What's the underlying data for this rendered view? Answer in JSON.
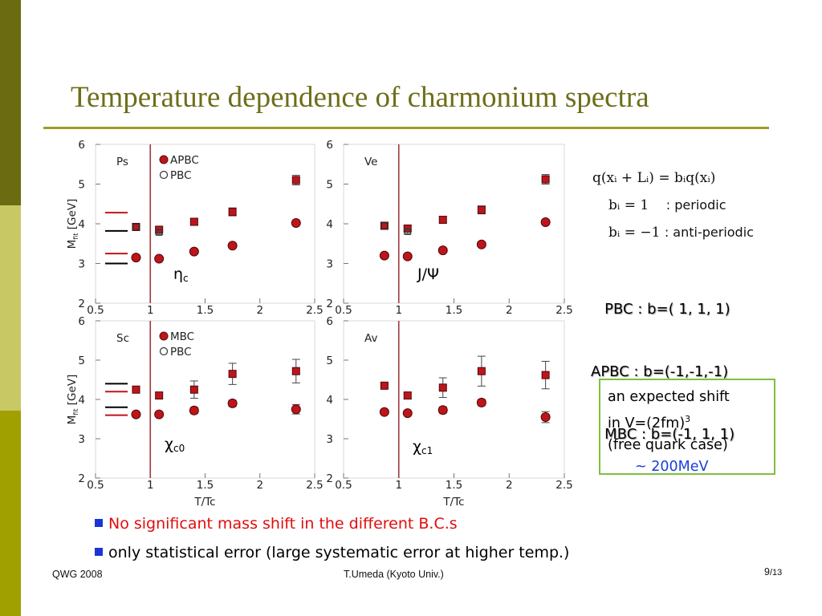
{
  "slide": {
    "title": "Temperature dependence of charmonium spectra",
    "formula": {
      "line1": "q(xᵢ + Lᵢ) = bᵢq(xᵢ)",
      "line2": "bᵢ = 1",
      "line2_desc": ": periodic",
      "line3": "bᵢ = −1",
      "line3_desc": ": anti-periodic"
    },
    "bc_lines": [
      "   PBC : b=( 1, 1, 1)",
      "APBC : b=(-1,-1,-1)",
      "   MBC : b=(-1, 1, 1)"
    ],
    "shift_box": {
      "line1": "an expected shift",
      "line2": "in V=(2fm)",
      "line2_sup": "3",
      "line3": "(free quark case)",
      "line4": "~ 200MeV"
    },
    "bullets": [
      "No significant mass shift in the different B.C.s",
      "only statistical error (large systematic error at higher temp.)"
    ],
    "footer": {
      "left": "QWG 2008",
      "center": "T.Umeda (Kyoto Univ.)",
      "page": "9",
      "total": "/13"
    },
    "colors": {
      "accent_olive": "#9c9c2a",
      "title": "#6e6e1a",
      "data_red": "#c0141a",
      "bullet_red": "#e00d0d",
      "bullet_square": "#1a35d4",
      "box_border": "#7fbf3f",
      "box_text_blue": "#1c3fd6"
    }
  },
  "chart_data": [
    {
      "type": "scatter",
      "panel": "Ps",
      "label": "η",
      "label_sub": "c",
      "xlabel": "",
      "ylabel": "M",
      "ylabel_sub": "fit",
      "ylabel_unit": " [GeV]",
      "xlim": [
        0.5,
        2.5
      ],
      "ylim": [
        2,
        6
      ],
      "xticks": [
        "0.5",
        "1",
        "1.5",
        "2",
        "2.5"
      ],
      "yticks": [
        "2",
        "3",
        "4",
        "5",
        "6"
      ],
      "vline": 1.0,
      "legend": [
        "APBC",
        "PBC"
      ],
      "grid": false,
      "series": [
        {
          "name": "APBC",
          "marker": "square",
          "x": [
            0.87,
            1.08,
            1.4,
            1.75,
            2.33
          ],
          "y": [
            3.92,
            3.85,
            4.05,
            4.3,
            5.1
          ],
          "err": [
            0.06,
            0.06,
            0.08,
            0.1,
            0.12
          ]
        },
        {
          "name": "PBC",
          "marker": "square-open",
          "x": [
            0.87,
            1.08
          ],
          "y": [
            3.92,
            3.78
          ],
          "err": [
            0.04,
            0.05
          ]
        },
        {
          "name": "APBC",
          "marker": "circle",
          "x": [
            0.87,
            1.08,
            1.4,
            1.75,
            2.33
          ],
          "y": [
            3.15,
            3.12,
            3.3,
            3.45,
            4.02
          ],
          "err": [
            0.02,
            0.02,
            0.03,
            0.03,
            0.05
          ]
        }
      ],
      "reference_lines": [
        {
          "color": "red",
          "y": 4.28
        },
        {
          "color": "black",
          "y": 3.82
        },
        {
          "color": "red",
          "y": 3.25
        },
        {
          "color": "black",
          "y": 3.0
        }
      ]
    },
    {
      "type": "scatter",
      "panel": "Ve",
      "label": "J/Ψ",
      "label_sub": "",
      "xlabel": "",
      "ylabel": "",
      "ylabel_sub": "",
      "ylabel_unit": "",
      "xlim": [
        0.5,
        2.5
      ],
      "ylim": [
        2,
        6
      ],
      "xticks": [
        "0.5",
        "1",
        "1.5",
        "2",
        "2.5"
      ],
      "yticks": [
        "2",
        "3",
        "4",
        "5",
        "6"
      ],
      "vline": 1.0,
      "legend": [],
      "grid": false,
      "series": [
        {
          "name": "",
          "marker": "square",
          "x": [
            0.87,
            1.08,
            1.4,
            1.75,
            2.33
          ],
          "y": [
            3.95,
            3.88,
            4.1,
            4.35,
            5.12
          ],
          "err": [
            0.06,
            0.06,
            0.08,
            0.1,
            0.12
          ]
        },
        {
          "name": "",
          "marker": "square-open",
          "x": [
            0.87,
            1.08
          ],
          "y": [
            3.95,
            3.8
          ],
          "err": [
            0.04,
            0.05
          ]
        },
        {
          "name": "",
          "marker": "circle",
          "x": [
            0.87,
            1.08,
            1.4,
            1.75,
            2.33
          ],
          "y": [
            3.2,
            3.18,
            3.33,
            3.48,
            4.04
          ],
          "err": [
            0.02,
            0.02,
            0.03,
            0.03,
            0.05
          ]
        }
      ],
      "reference_lines": []
    },
    {
      "type": "scatter",
      "panel": "Sc",
      "label": "χ",
      "label_sub": "c0",
      "xlabel": "T/Tc",
      "ylabel": "M",
      "ylabel_sub": "fit",
      "ylabel_unit": " [GeV]",
      "xlim": [
        0.5,
        2.5
      ],
      "ylim": [
        2,
        6
      ],
      "xticks": [
        "0.5",
        "1",
        "1.5",
        "2",
        "2.5"
      ],
      "yticks": [
        "2",
        "3",
        "4",
        "5",
        "6"
      ],
      "vline": 1.0,
      "legend": [
        "MBC",
        "PBC"
      ],
      "grid": false,
      "series": [
        {
          "name": "MBC",
          "marker": "square",
          "x": [
            0.87,
            1.08,
            1.4,
            1.75,
            2.33
          ],
          "y": [
            4.25,
            4.1,
            4.25,
            4.65,
            4.72
          ],
          "err": [
            0.05,
            0.08,
            0.22,
            0.27,
            0.3
          ]
        },
        {
          "name": "MBC",
          "marker": "circle",
          "x": [
            0.87,
            1.08,
            1.4,
            1.75,
            2.33
          ],
          "y": [
            3.62,
            3.62,
            3.72,
            3.9,
            3.75
          ],
          "err": [
            0.03,
            0.04,
            0.08,
            0.08,
            0.12
          ]
        }
      ],
      "reference_lines": [
        {
          "color": "black",
          "y": 4.4
        },
        {
          "color": "red",
          "y": 4.2
        },
        {
          "color": "black",
          "y": 3.8
        },
        {
          "color": "red",
          "y": 3.6
        }
      ]
    },
    {
      "type": "scatter",
      "panel": "Av",
      "label": "χ",
      "label_sub": "c1",
      "xlabel": "T/Tc",
      "ylabel": "",
      "ylabel_sub": "",
      "ylabel_unit": "",
      "xlim": [
        0.5,
        2.5
      ],
      "ylim": [
        2,
        6
      ],
      "xticks": [
        "0.5",
        "1",
        "1.5",
        "2",
        "2.5"
      ],
      "yticks": [
        "2",
        "3",
        "4",
        "5",
        "6"
      ],
      "vline": 1.0,
      "legend": [],
      "grid": false,
      "series": [
        {
          "name": "",
          "marker": "square",
          "x": [
            0.87,
            1.08,
            1.4,
            1.75,
            2.33
          ],
          "y": [
            4.35,
            4.1,
            4.3,
            4.72,
            4.62
          ],
          "err": [
            0.05,
            0.08,
            0.25,
            0.38,
            0.35
          ]
        },
        {
          "name": "",
          "marker": "circle",
          "x": [
            0.87,
            1.08,
            1.4,
            1.75,
            2.33
          ],
          "y": [
            3.68,
            3.65,
            3.73,
            3.92,
            3.55
          ],
          "err": [
            0.03,
            0.04,
            0.08,
            0.08,
            0.14
          ]
        }
      ],
      "reference_lines": []
    }
  ]
}
